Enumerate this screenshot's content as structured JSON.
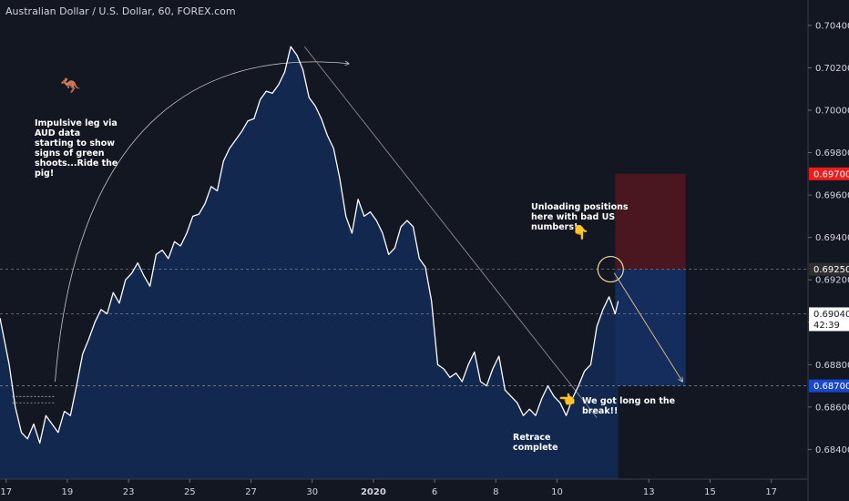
{
  "chart_title": "Australian Dollar / U.S. Dollar, 60, FOREX.com",
  "chart_data": {
    "type": "area",
    "title": "Australian Dollar / U.S. Dollar, 60, FOREX.com",
    "xlabel": "",
    "ylabel": "",
    "ylim": [
      0.6826,
      0.7052
    ],
    "y_ticks": [
      0.684,
      0.686,
      0.688,
      0.69,
      0.692,
      0.694,
      0.696,
      0.698,
      0.7,
      0.702,
      0.704
    ],
    "y_tick_labels": [
      "0.68400",
      "0.68600",
      "0.68800",
      "0.69000",
      "0.69200",
      "0.69400",
      "0.69600",
      "0.69800",
      "0.70000",
      "0.70200",
      "0.70400"
    ],
    "x_ticks": [
      {
        "label": "17",
        "pos": 0.0
      },
      {
        "label": "19",
        "pos": 2.0
      },
      {
        "label": "23",
        "pos": 4.0
      },
      {
        "label": "25",
        "pos": 6.0
      },
      {
        "label": "27",
        "pos": 8.0
      },
      {
        "label": "30",
        "pos": 10.0
      },
      {
        "label": "2020",
        "pos": 12.0
      },
      {
        "label": "6",
        "pos": 14.0
      },
      {
        "label": "8",
        "pos": 16.0
      },
      {
        "label": "10",
        "pos": 18.0
      },
      {
        "label": "13",
        "pos": 21.0
      },
      {
        "label": "15",
        "pos": 23.0
      },
      {
        "label": "17",
        "pos": 25.0
      }
    ],
    "xlim": [
      -0.2,
      26.2
    ],
    "series": [
      {
        "x": [
          -0.2,
          0.1,
          0.3,
          0.5,
          0.7,
          0.9,
          1.1,
          1.3,
          1.5,
          1.7,
          1.9,
          2.1,
          2.3,
          2.5,
          2.7,
          2.9,
          3.1,
          3.3,
          3.5,
          3.7,
          3.9,
          4.1,
          4.3,
          4.5,
          4.7,
          4.9,
          5.1,
          5.3,
          5.5,
          5.7,
          5.9,
          6.1,
          6.3,
          6.5,
          6.7,
          6.9,
          7.1,
          7.3,
          7.5,
          7.7,
          7.9,
          8.1,
          8.3,
          8.5,
          8.7,
          8.9,
          9.1,
          9.3,
          9.5,
          9.7,
          9.9,
          10.1,
          10.3,
          10.5,
          10.7,
          10.9,
          11.1,
          11.3,
          11.5,
          11.7,
          11.9,
          12.1,
          12.3,
          12.5,
          12.7,
          12.9,
          13.1,
          13.3,
          13.5,
          13.7,
          13.9,
          14.1,
          14.3,
          14.5,
          14.7,
          14.9,
          15.1,
          15.3,
          15.5,
          15.7,
          15.9,
          16.1,
          16.3,
          16.5,
          16.7,
          16.9,
          17.1,
          17.3,
          17.5,
          17.7,
          17.9,
          18.1,
          18.3,
          18.5,
          18.7,
          18.9,
          19.1,
          19.3,
          19.5,
          19.7,
          19.9,
          20.0
        ],
        "values": [
          0.6902,
          0.688,
          0.686,
          0.6848,
          0.6845,
          0.6852,
          0.6843,
          0.6856,
          0.6852,
          0.6848,
          0.6858,
          0.6856,
          0.687,
          0.6885,
          0.6892,
          0.69,
          0.6906,
          0.6904,
          0.6914,
          0.6909,
          0.692,
          0.6923,
          0.6928,
          0.6922,
          0.6917,
          0.6932,
          0.6934,
          0.693,
          0.6938,
          0.6936,
          0.6942,
          0.695,
          0.6951,
          0.6956,
          0.6964,
          0.6962,
          0.6976,
          0.6982,
          0.6986,
          0.699,
          0.6995,
          0.6996,
          0.7005,
          0.7009,
          0.7008,
          0.7012,
          0.7018,
          0.703,
          0.7026,
          0.7019,
          0.7006,
          0.7002,
          0.6996,
          0.6988,
          0.6982,
          0.6968,
          0.695,
          0.6942,
          0.6958,
          0.695,
          0.6952,
          0.6948,
          0.6942,
          0.6932,
          0.6935,
          0.6945,
          0.6948,
          0.6945,
          0.693,
          0.6926,
          0.691,
          0.688,
          0.6878,
          0.6874,
          0.6876,
          0.6872,
          0.688,
          0.6886,
          0.6872,
          0.687,
          0.6878,
          0.6884,
          0.6868,
          0.6865,
          0.6862,
          0.6856,
          0.6859,
          0.6856,
          0.6864,
          0.687,
          0.6865,
          0.6862,
          0.6856,
          0.6864,
          0.687,
          0.6877,
          0.688,
          0.6898,
          0.6906,
          0.6912,
          0.6904,
          0.691
        ]
      }
    ],
    "annotations": [
      {
        "text": "Impulsive leg via AUD data starting to show signs of green shoots...Ride the pig!"
      },
      {
        "text": "Unloading positions here with bad US numbers!"
      },
      {
        "text": "We got long on the break!!"
      },
      {
        "text": "Retrace complete"
      }
    ],
    "price_labels": [
      {
        "text": "0.69700",
        "value": 0.697,
        "bg": "#ef1c1c"
      },
      {
        "text": "0.69250",
        "value": 0.6925,
        "bg": "#2f2f2f"
      },
      {
        "text": "0.69040",
        "value": 0.6904,
        "bg": "#ffffff"
      },
      {
        "text": "42:39",
        "value": 0.6902,
        "bg": "#ffffff"
      },
      {
        "text": "0.68700",
        "value": 0.687,
        "bg": "#1848cc"
      }
    ],
    "dashed_levels": [
      0.6925,
      0.6904,
      0.687
    ],
    "position_box": {
      "entry": 0.6925,
      "stop": 0.697,
      "target": 0.687,
      "x_start": 19.9,
      "x_end": 22.2
    },
    "colors": {
      "line": "#ffffff",
      "area": "#13284f",
      "stop_zone": "#4a1620",
      "target_zone": "#142d5c",
      "background": "#131722"
    },
    "grid": false
  }
}
